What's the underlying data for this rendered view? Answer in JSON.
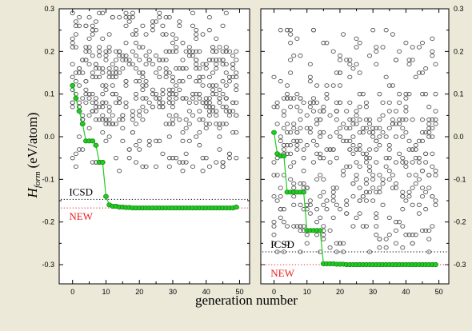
{
  "chart_data": {
    "type": "scatter",
    "xlabel": "generation number",
    "ylabel_main": "H",
    "ylabel_sub": "form",
    "ylabel_unit": "(eV/atom)",
    "xlim": [
      -4,
      53
    ],
    "ylim": [
      -0.345,
      0.3
    ],
    "x_ticks": [
      0,
      10,
      20,
      30,
      40,
      50
    ],
    "y_ticks": [
      -0.3,
      -0.2,
      -0.1,
      0.0,
      0.1,
      0.2,
      0.3
    ],
    "y_tick_labels": [
      "-0.3",
      "-0.2",
      "-0.1",
      "0.0",
      "0.1",
      "0.2",
      "0.3"
    ],
    "colors": {
      "best": "#22cc22",
      "best_edge": "#118811",
      "population": "#555555",
      "icsd": "#000000",
      "new": "#e82020"
    },
    "panels": [
      {
        "name": "left",
        "icsd_value": -0.147,
        "new_value": -0.167,
        "icsd_label": "ICSD",
        "new_label": "NEW",
        "best_series": [
          [
            0,
            0.12
          ],
          [
            1,
            0.09
          ],
          [
            2,
            0.06
          ],
          [
            3,
            0.03
          ],
          [
            4,
            -0.01
          ],
          [
            5,
            -0.01
          ],
          [
            6,
            -0.01
          ],
          [
            7,
            -0.02
          ],
          [
            8,
            -0.06
          ],
          [
            9,
            -0.06
          ],
          [
            10,
            -0.14
          ],
          [
            11,
            -0.16
          ],
          [
            12,
            -0.163
          ],
          [
            13,
            -0.163
          ],
          [
            14,
            -0.165
          ],
          [
            15,
            -0.165
          ],
          [
            16,
            -0.166
          ],
          [
            17,
            -0.166
          ],
          [
            18,
            -0.167
          ],
          [
            19,
            -0.167
          ],
          [
            20,
            -0.167
          ],
          [
            21,
            -0.167
          ],
          [
            22,
            -0.167
          ],
          [
            23,
            -0.167
          ],
          [
            24,
            -0.167
          ],
          [
            25,
            -0.167
          ],
          [
            26,
            -0.167
          ],
          [
            27,
            -0.167
          ],
          [
            28,
            -0.167
          ],
          [
            29,
            -0.167
          ],
          [
            30,
            -0.167
          ],
          [
            31,
            -0.167
          ],
          [
            32,
            -0.167
          ],
          [
            33,
            -0.167
          ],
          [
            34,
            -0.167
          ],
          [
            35,
            -0.167
          ],
          [
            36,
            -0.167
          ],
          [
            37,
            -0.167
          ],
          [
            38,
            -0.167
          ],
          [
            39,
            -0.167
          ],
          [
            40,
            -0.167
          ],
          [
            41,
            -0.167
          ],
          [
            42,
            -0.167
          ],
          [
            43,
            -0.167
          ],
          [
            44,
            -0.167
          ],
          [
            45,
            -0.167
          ],
          [
            46,
            -0.167
          ],
          [
            47,
            -0.167
          ],
          [
            48,
            -0.167
          ],
          [
            49,
            -0.165
          ]
        ],
        "population_band": [
          0.03,
          0.21
        ],
        "population_high": 0.29,
        "population_low": -0.08,
        "seed": 11
      },
      {
        "name": "right",
        "icsd_value": -0.27,
        "new_value": -0.3,
        "icsd_label": "ICSD",
        "new_label": "NEW",
        "best_series": [
          [
            0,
            0.01
          ],
          [
            1,
            -0.04
          ],
          [
            2,
            -0.045
          ],
          [
            3,
            -0.045
          ],
          [
            4,
            -0.13
          ],
          [
            5,
            -0.13
          ],
          [
            6,
            -0.13
          ],
          [
            7,
            -0.13
          ],
          [
            8,
            -0.13
          ],
          [
            9,
            -0.13
          ],
          [
            10,
            -0.22
          ],
          [
            11,
            -0.22
          ],
          [
            12,
            -0.22
          ],
          [
            13,
            -0.22
          ],
          [
            14,
            -0.22
          ],
          [
            15,
            -0.298
          ],
          [
            16,
            -0.298
          ],
          [
            17,
            -0.298
          ],
          [
            18,
            -0.298
          ],
          [
            19,
            -0.299
          ],
          [
            20,
            -0.299
          ],
          [
            21,
            -0.299
          ],
          [
            22,
            -0.3
          ],
          [
            23,
            -0.3
          ],
          [
            24,
            -0.3
          ],
          [
            25,
            -0.3
          ],
          [
            26,
            -0.3
          ],
          [
            27,
            -0.3
          ],
          [
            28,
            -0.3
          ],
          [
            29,
            -0.3
          ],
          [
            30,
            -0.3
          ],
          [
            31,
            -0.3
          ],
          [
            32,
            -0.3
          ],
          [
            33,
            -0.3
          ],
          [
            34,
            -0.3
          ],
          [
            35,
            -0.3
          ],
          [
            36,
            -0.3
          ],
          [
            37,
            -0.3
          ],
          [
            38,
            -0.3
          ],
          [
            39,
            -0.3
          ],
          [
            40,
            -0.3
          ],
          [
            41,
            -0.3
          ],
          [
            42,
            -0.3
          ],
          [
            43,
            -0.3
          ],
          [
            44,
            -0.3
          ],
          [
            45,
            -0.3
          ],
          [
            46,
            -0.3
          ],
          [
            47,
            -0.3
          ],
          [
            48,
            -0.3
          ],
          [
            49,
            -0.3
          ]
        ],
        "population_band": [
          -0.17,
          0.1
        ],
        "population_high": 0.26,
        "population_low": -0.275,
        "seed": 29
      }
    ]
  }
}
